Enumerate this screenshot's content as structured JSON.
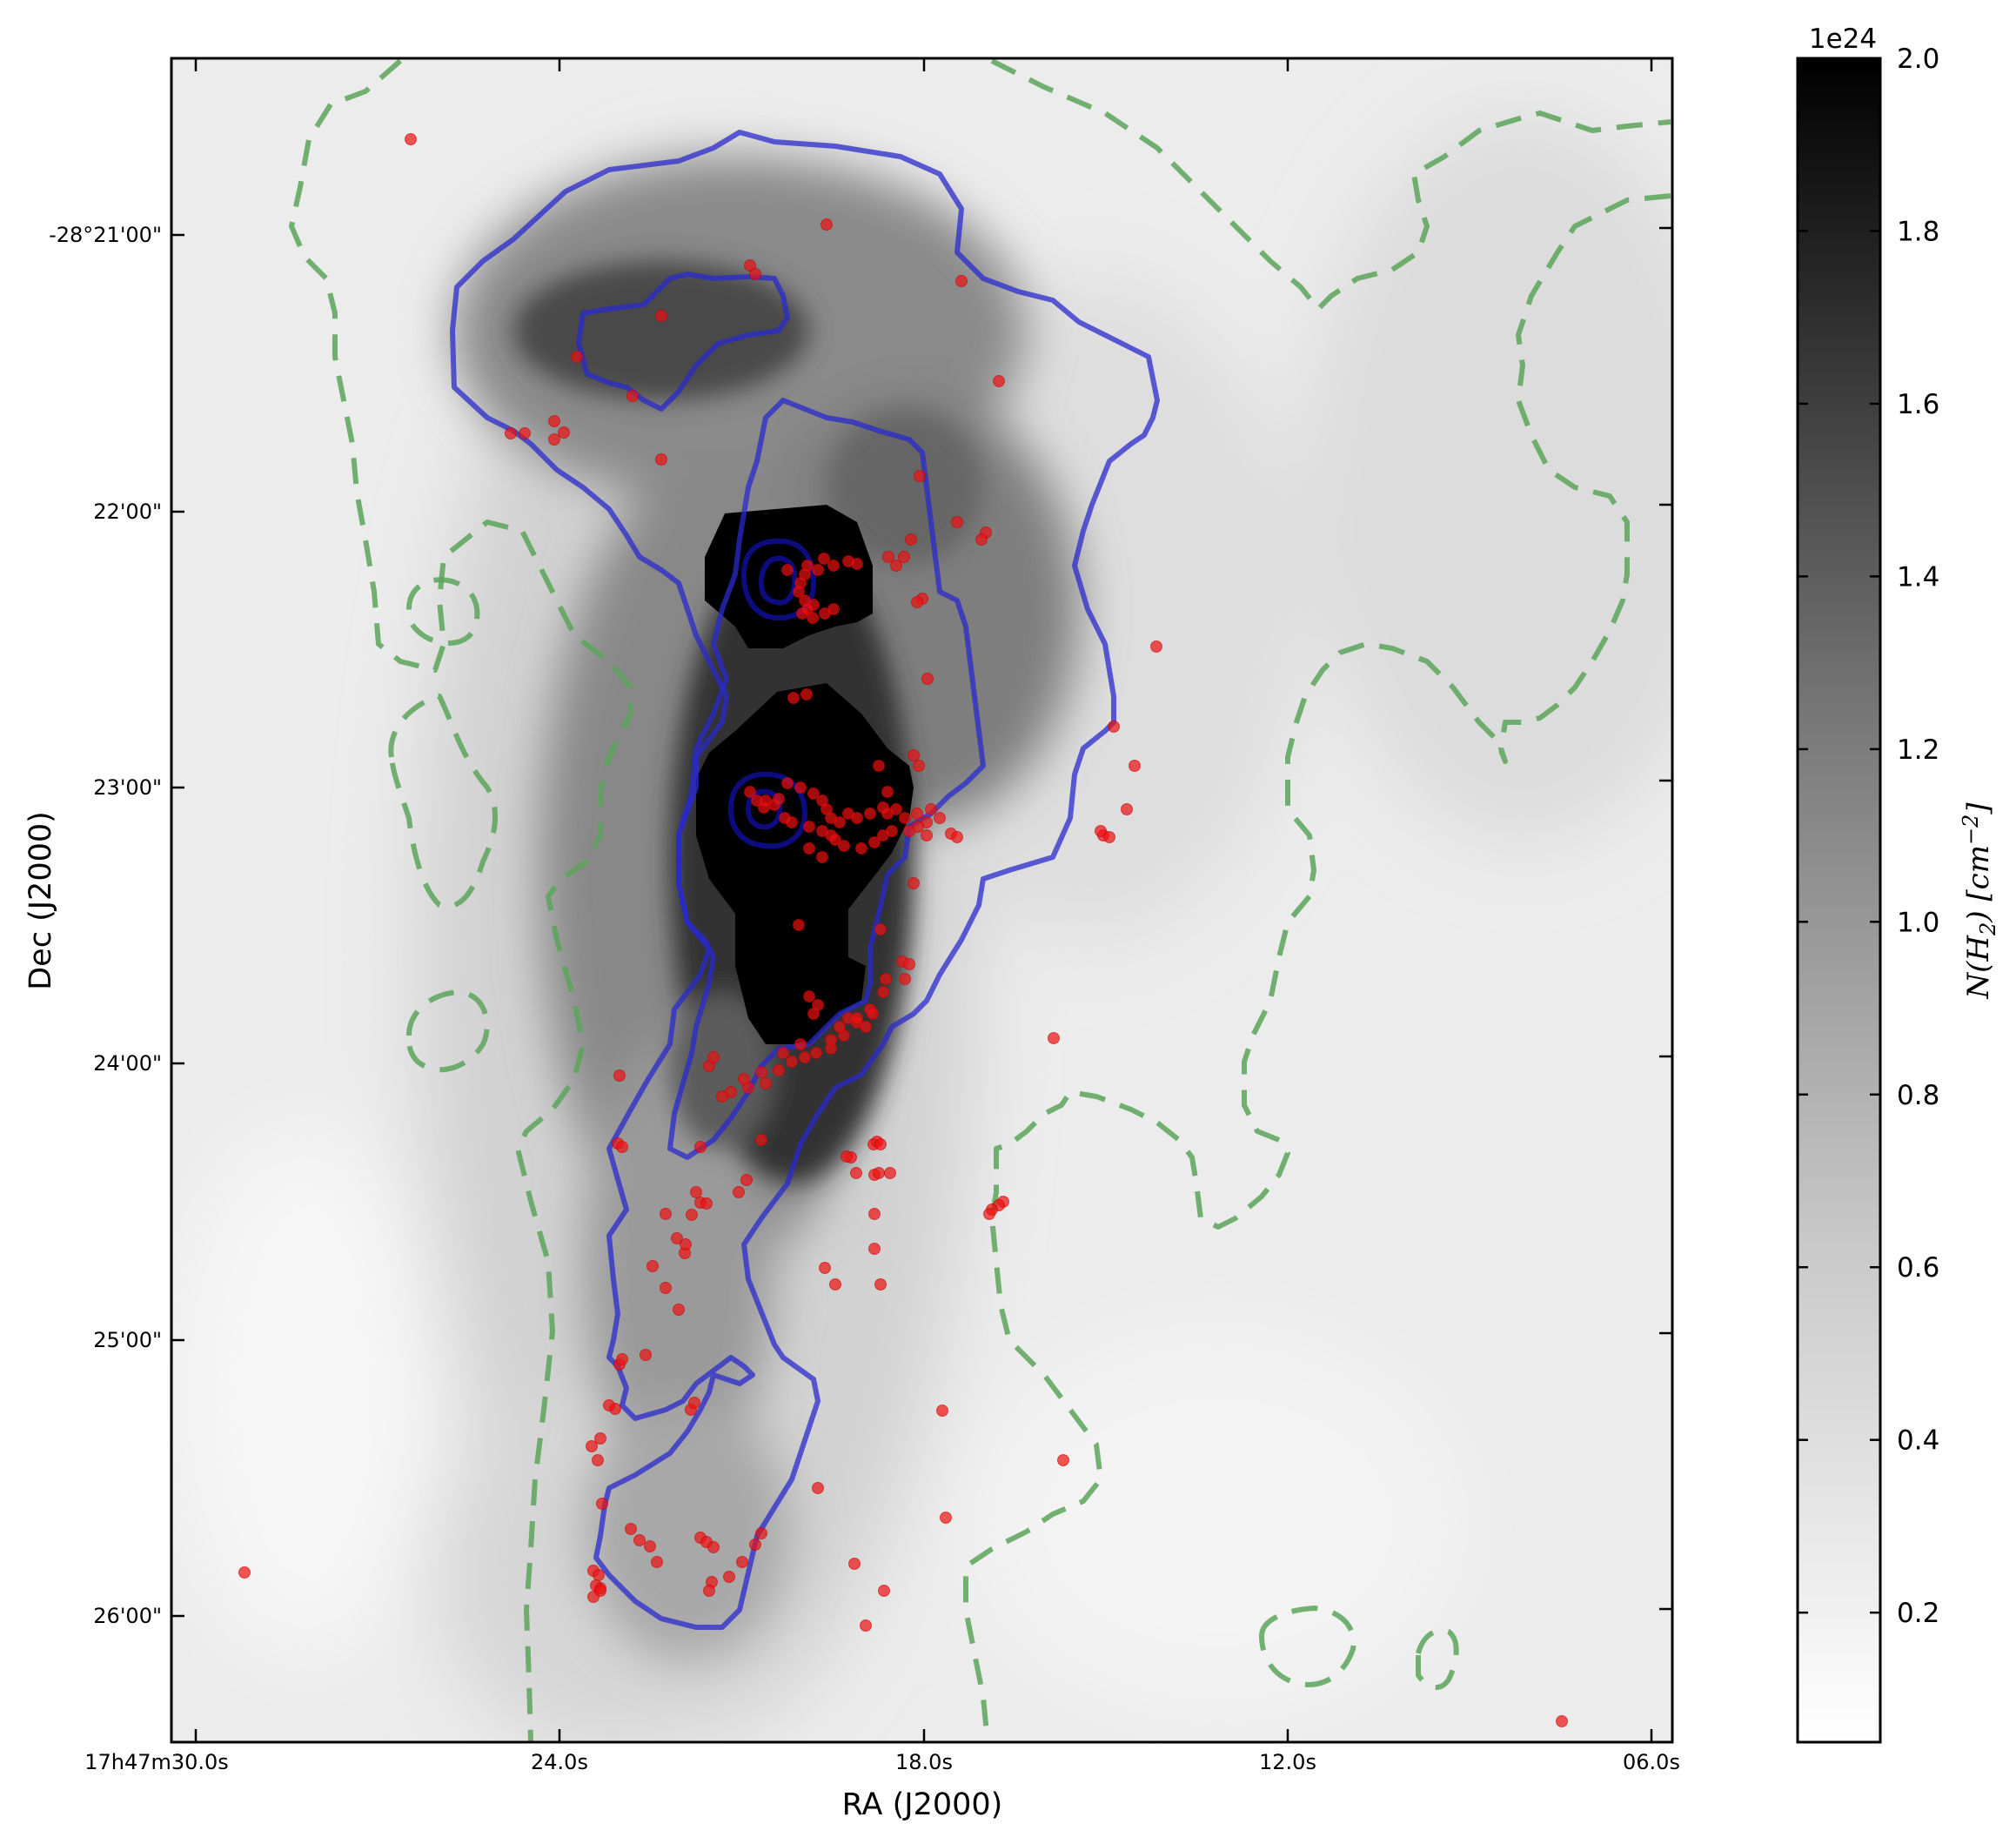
{
  "chart_data": {
    "type": "heatmap",
    "title": "",
    "xlabel": "RA (J2000)",
    "ylabel": "Dec (J2000)",
    "x_ticks": [
      "17h47m30.0s",
      "24.0s",
      "18.0s",
      "12.0s",
      "06.0s"
    ],
    "y_ticks": [
      "-28°21'00\"",
      "22'00\"",
      "23'00\"",
      "24'00\"",
      "25'00\"",
      "26'00\""
    ],
    "colorbar": {
      "label": "N(H2) [cm^-2]",
      "label_main": "N(H",
      "label_sub": "2",
      "label_mid": ") [cm",
      "label_sup": "−2",
      "label_end": "]",
      "multiplier": "1e24",
      "min": 0.05,
      "max": 2.0,
      "ticks": [
        "0.2",
        "0.4",
        "0.6",
        "0.8",
        "1.0",
        "1.2",
        "1.4",
        "1.6",
        "1.8",
        "2.0"
      ],
      "tick_values": [
        0.2,
        0.4,
        0.6,
        0.8,
        1.0,
        1.2,
        1.4,
        1.6,
        1.8,
        2.0
      ],
      "colormap": "gray_r"
    },
    "colors": {
      "contour_blue": "#2a2acc",
      "contour_dashed_green": "#5aa55a",
      "markers": "#ee1111"
    }
  }
}
